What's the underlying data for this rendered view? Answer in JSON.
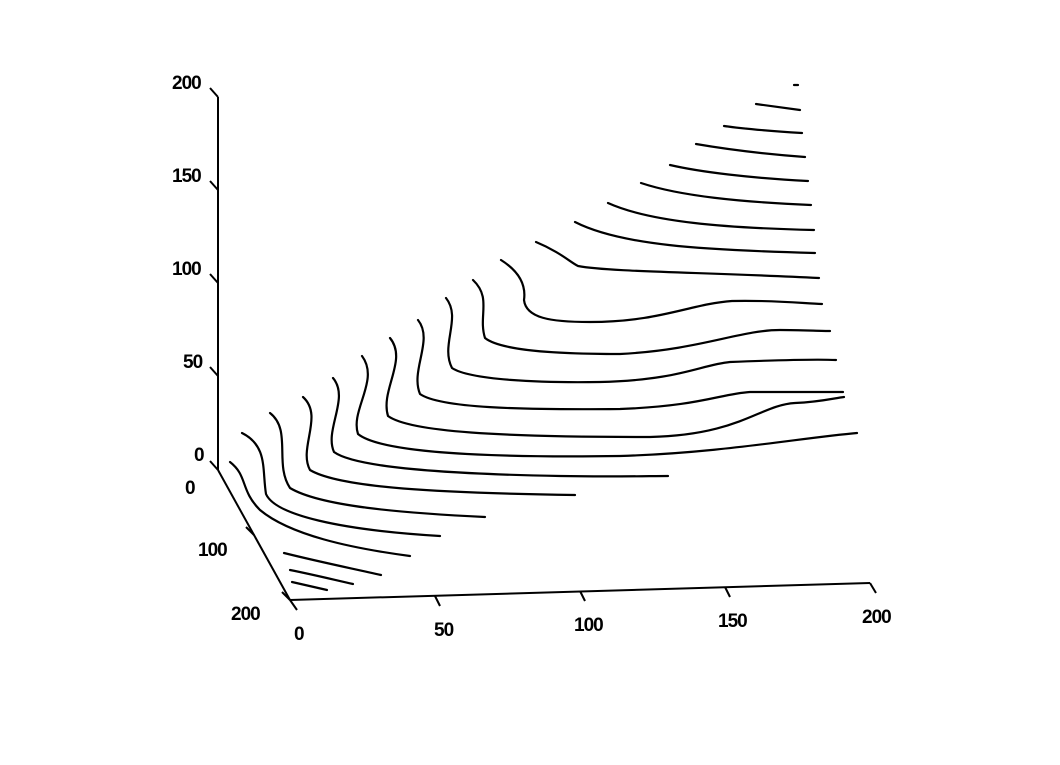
{
  "chart_data": {
    "type": "line",
    "title": "",
    "xlabel": "",
    "ylabel": "",
    "zlabel": "",
    "xlim": [
      0,
      200
    ],
    "ylim": [
      0,
      200
    ],
    "zlim": [
      0,
      200
    ],
    "x_ticks": [
      "0",
      "50",
      "100",
      "150",
      "200"
    ],
    "y_ticks": [
      "0",
      "100",
      "200"
    ],
    "z_ticks": [
      "0",
      "50",
      "100",
      "150",
      "200"
    ],
    "grid": false,
    "line_color": "#000000",
    "description": ""
  }
}
